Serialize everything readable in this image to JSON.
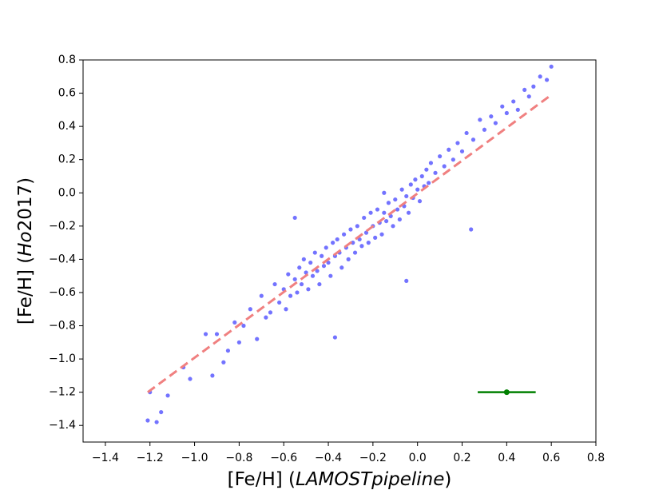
{
  "chart_data": {
    "type": "scatter",
    "xlabel": [
      "[Fe/H] (",
      "LAMOSTpipeline",
      ")"
    ],
    "ylabel": [
      "[Fe/H] (",
      "Ho",
      "2017)"
    ],
    "xlim": [
      -1.5,
      0.8
    ],
    "ylim": [
      -1.5,
      0.8
    ],
    "xticks": [
      {
        "value": -1.4,
        "label": "−1.4"
      },
      {
        "value": -1.2,
        "label": "−1.2"
      },
      {
        "value": -1.0,
        "label": "−1.0"
      },
      {
        "value": -0.8,
        "label": "−0.8"
      },
      {
        "value": -0.6,
        "label": "−0.6"
      },
      {
        "value": -0.4,
        "label": "−0.4"
      },
      {
        "value": -0.2,
        "label": "−0.2"
      },
      {
        "value": 0,
        "label": "0.0"
      },
      0.2,
      0.4,
      0.6,
      0.8
    ],
    "yticks": [
      {
        "value": -1.4,
        "label": "−1.4"
      },
      {
        "value": -1.2,
        "label": "−1.2"
      },
      {
        "value": -1.0,
        "label": "−1.0"
      },
      {
        "value": -0.8,
        "label": "−0.8"
      },
      {
        "value": -0.6,
        "label": "−0.6"
      },
      {
        "value": -0.4,
        "label": "−0.4"
      },
      {
        "value": -0.2,
        "label": "−0.2"
      },
      {
        "value": 0,
        "label": "0.0"
      },
      0.2,
      0.4,
      0.6,
      0.8
    ],
    "series": [
      {
        "color": "#0000ff",
        "x": [
          -1.21,
          -1.2,
          -1.17,
          -1.15,
          -1.12,
          -1.05,
          -1.02,
          -0.95,
          -0.92,
          -0.9,
          -0.87,
          -0.85,
          -0.82,
          -0.8,
          -0.78,
          -0.75,
          -0.72,
          -0.7,
          -0.68,
          -0.66,
          -0.64,
          -0.62,
          -0.6,
          -0.59,
          -0.58,
          -0.57,
          -0.55,
          -0.55,
          -0.54,
          -0.53,
          -0.52,
          -0.51,
          -0.5,
          -0.49,
          -0.48,
          -0.47,
          -0.46,
          -0.45,
          -0.44,
          -0.43,
          -0.42,
          -0.41,
          -0.4,
          -0.39,
          -0.38,
          -0.37,
          -0.37,
          -0.36,
          -0.35,
          -0.34,
          -0.33,
          -0.32,
          -0.31,
          -0.3,
          -0.29,
          -0.28,
          -0.27,
          -0.26,
          -0.25,
          -0.24,
          -0.23,
          -0.22,
          -0.21,
          -0.2,
          -0.19,
          -0.18,
          -0.17,
          -0.16,
          -0.15,
          -0.15,
          -0.14,
          -0.13,
          -0.12,
          -0.11,
          -0.1,
          -0.09,
          -0.08,
          -0.07,
          -0.06,
          -0.05,
          -0.05,
          -0.04,
          -0.03,
          -0.02,
          -0.01,
          0,
          0.01,
          0.02,
          0.03,
          0.04,
          0.05,
          0.06,
          0.08,
          0.1,
          0.12,
          0.14,
          0.16,
          0.18,
          0.2,
          0.22,
          0.24,
          0.25,
          0.28,
          0.3,
          0.33,
          0.35,
          0.38,
          0.4,
          0.43,
          0.45,
          0.48,
          0.5,
          0.52,
          0.55,
          0.58,
          0.6
        ],
        "values": [
          -1.37,
          -1.2,
          -1.38,
          -1.32,
          -1.22,
          -1.05,
          -1.12,
          -0.85,
          -1.1,
          -0.85,
          -1.02,
          -0.95,
          -0.78,
          -0.9,
          -0.8,
          -0.7,
          -0.88,
          -0.62,
          -0.75,
          -0.72,
          -0.55,
          -0.66,
          -0.58,
          -0.7,
          -0.49,
          -0.62,
          -0.15,
          -0.52,
          -0.6,
          -0.45,
          -0.55,
          -0.4,
          -0.48,
          -0.58,
          -0.42,
          -0.5,
          -0.36,
          -0.47,
          -0.55,
          -0.38,
          -0.44,
          -0.33,
          -0.42,
          -0.5,
          -0.3,
          -0.87,
          -0.38,
          -0.28,
          -0.36,
          -0.45,
          -0.25,
          -0.33,
          -0.4,
          -0.22,
          -0.3,
          -0.36,
          -0.2,
          -0.28,
          -0.32,
          -0.15,
          -0.24,
          -0.3,
          -0.12,
          -0.2,
          -0.27,
          -0.1,
          -0.18,
          -0.25,
          0,
          -0.12,
          -0.17,
          -0.06,
          -0.14,
          -0.2,
          -0.04,
          -0.1,
          -0.16,
          0.02,
          -0.08,
          -0.53,
          -0.02,
          -0.12,
          0.05,
          -0.03,
          0.08,
          0.02,
          -0.05,
          0.1,
          0.04,
          0.14,
          0.06,
          0.18,
          0.12,
          0.22,
          0.16,
          0.26,
          0.2,
          0.3,
          0.25,
          0.36,
          -0.22,
          0.32,
          0.44,
          0.38,
          0.46,
          0.42,
          0.52,
          0.48,
          0.55,
          0.5,
          0.62,
          0.58,
          0.64,
          0.7,
          0.68,
          0.76
        ]
      }
    ],
    "fit_line": {
      "color": "#f08080",
      "x": [
        -1.21,
        0.59
      ],
      "values": [
        -1.2,
        0.58
      ]
    },
    "error_bar": {
      "color": "#008000",
      "x": 0.4,
      "value": -1.2,
      "xerr": 0.13
    }
  }
}
